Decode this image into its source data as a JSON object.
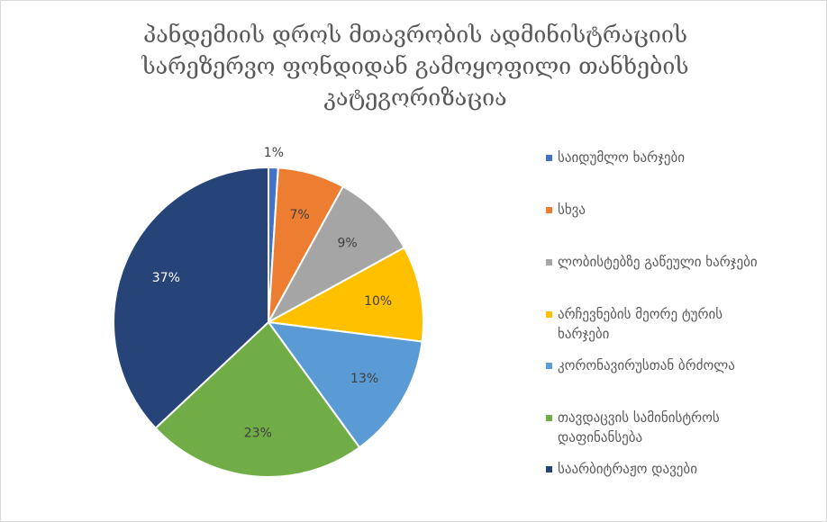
{
  "chart_data": {
    "type": "pie",
    "title": "პანდემიის დროს მთავრობის ადმინისტრაციის სარეზერვო ფონდიდან გამოყოფილი თანხების კატეგორიზაცია",
    "categories": [
      "საიდუმლო ხარჯები",
      "სხვა",
      "ლობისტებზე გაწეული ხარჯები",
      "არჩევნების მეორე ტურის ხარჯები",
      "კორონავირუსთან ბრძოლა",
      "თავდაცვის სამინისტროს დაფინანსება",
      "საარბიტრაჟო დავები"
    ],
    "values": [
      1,
      7,
      9,
      10,
      13,
      23,
      37
    ],
    "value_labels": [
      "1%",
      "7%",
      "9%",
      "10%",
      "13%",
      "23%",
      "37%"
    ],
    "colors": [
      "#4472c4",
      "#ed7d31",
      "#a5a5a5",
      "#ffc000",
      "#5b9bd5",
      "#70ad47",
      "#264478"
    ],
    "legend": "right"
  }
}
